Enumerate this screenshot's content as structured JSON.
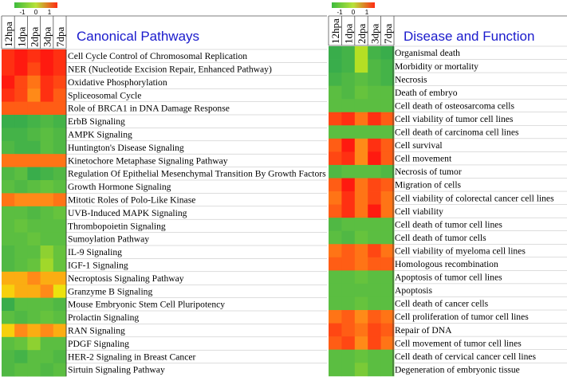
{
  "legend": {
    "ticks": [
      "-1",
      "0",
      "1"
    ],
    "colors": [
      "#3dbb3d",
      "#b8e23a",
      "#ff2a12"
    ]
  },
  "colorscale": {
    "stops": [
      {
        "v": -1.0,
        "color": "#2ea84f"
      },
      {
        "v": -0.5,
        "color": "#66c33d"
      },
      {
        "v": 0.0,
        "color": "#c9e61e"
      },
      {
        "v": 0.25,
        "color": "#f5e10a"
      },
      {
        "v": 0.5,
        "color": "#ff8a18"
      },
      {
        "v": 1.0,
        "color": "#ff1a10"
      }
    ]
  },
  "chart_data": [
    {
      "type": "heatmap",
      "title": "Canonical Pathways",
      "columns": [
        "12hpa",
        "1dpa",
        "2dpa",
        "3dpa",
        "7dpa"
      ],
      "rows": [
        {
          "label": "Cell Cycle Control of Chromosomal Replication",
          "values": [
            0.9,
            1.0,
            0.9,
            1.0,
            0.9
          ]
        },
        {
          "label": "NER (Nucleotide Excision Repair, Enhanced Pathway)",
          "values": [
            0.9,
            1.0,
            0.8,
            1.0,
            0.9
          ]
        },
        {
          "label": "Oxidative Phosphorylation",
          "values": [
            1.0,
            0.8,
            0.6,
            0.9,
            0.8
          ]
        },
        {
          "label": "Spliceosomal Cycle",
          "values": [
            0.9,
            0.8,
            0.5,
            0.9,
            0.7
          ]
        },
        {
          "label": "Role of BRCA1 in DNA Damage Response",
          "values": [
            0.7,
            0.7,
            0.7,
            0.7,
            0.7
          ]
        },
        {
          "label": "ErbB Signaling",
          "values": [
            -0.9,
            -0.9,
            -0.8,
            -0.7,
            -0.8
          ]
        },
        {
          "label": "AMPK Signaling",
          "values": [
            -0.8,
            -0.8,
            -0.7,
            -0.6,
            -0.7
          ]
        },
        {
          "label": "Huntington's Disease Signaling",
          "values": [
            -0.7,
            -0.8,
            -0.8,
            -0.6,
            -0.7
          ]
        },
        {
          "label": "Kinetochore Metaphase Signaling Pathway",
          "values": [
            0.6,
            0.6,
            0.6,
            0.6,
            0.6
          ]
        },
        {
          "label": "Regulation Of Epithelial Mesenchymal Transition By Growth Factors",
          "values": [
            -0.7,
            -0.6,
            -0.9,
            -0.8,
            -0.7
          ]
        },
        {
          "label": "Growth Hormone Signaling",
          "values": [
            -0.6,
            -0.7,
            -0.6,
            -0.5,
            -0.6
          ]
        },
        {
          "label": "Mitotic Roles of Polo-Like Kinase",
          "values": [
            0.6,
            0.5,
            0.5,
            0.5,
            0.6
          ]
        },
        {
          "label": "UVB-Induced MAPK Signaling",
          "values": [
            -0.6,
            -0.6,
            -0.7,
            -0.6,
            -0.5
          ]
        },
        {
          "label": "Thrombopoietin Signaling",
          "values": [
            -0.6,
            -0.5,
            -0.6,
            -0.6,
            -0.6
          ]
        },
        {
          "label": "Sumoylation Pathway",
          "values": [
            -0.6,
            -0.6,
            -0.5,
            -0.6,
            -0.6
          ]
        },
        {
          "label": "IL-9 Signaling",
          "values": [
            -0.7,
            -0.6,
            -0.6,
            -0.3,
            -0.5
          ]
        },
        {
          "label": "IGF-1 Signaling",
          "values": [
            -0.7,
            -0.6,
            -0.5,
            -0.2,
            -0.5
          ]
        },
        {
          "label": "Necroptosis Signaling Pathway",
          "values": [
            0.4,
            0.4,
            0.5,
            0.4,
            0.4
          ]
        },
        {
          "label": "Granzyme B Signaling",
          "values": [
            0.3,
            0.4,
            0.4,
            0.5,
            0.2
          ]
        },
        {
          "label": "Mouse Embryonic Stem Cell Pluripotency",
          "values": [
            -0.9,
            -0.6,
            -0.6,
            -0.6,
            -0.7
          ]
        },
        {
          "label": "Prolactin Signaling",
          "values": [
            -0.6,
            -0.7,
            -0.6,
            -0.5,
            -0.6
          ]
        },
        {
          "label": "RAN Signaling",
          "values": [
            0.3,
            0.5,
            0.4,
            0.5,
            0.4
          ]
        },
        {
          "label": "PDGF Signaling",
          "values": [
            -0.6,
            -0.5,
            -0.3,
            -0.6,
            -0.6
          ]
        },
        {
          "label": "HER-2 Signaling in Breast Cancer",
          "values": [
            -0.7,
            -0.8,
            -0.6,
            -0.6,
            -0.7
          ]
        },
        {
          "label": "Sirtuin Signaling Pathway",
          "values": [
            -0.7,
            -0.6,
            -0.6,
            -0.7,
            -0.6
          ]
        }
      ]
    },
    {
      "type": "heatmap",
      "title": "Disease and Function",
      "columns": [
        "12hpa",
        "1dpa",
        "2dpa",
        "3dpa",
        "7dpa"
      ],
      "rows": [
        {
          "label": "Organismal death",
          "values": [
            -0.9,
            -0.8,
            -0.1,
            -0.8,
            -0.9
          ]
        },
        {
          "label": "Morbidity or mortality",
          "values": [
            -0.9,
            -0.8,
            -0.1,
            -0.7,
            -0.8
          ]
        },
        {
          "label": "Necrosis",
          "values": [
            -0.8,
            -0.7,
            -0.6,
            -0.7,
            -0.8
          ]
        },
        {
          "label": "Death of embryo",
          "values": [
            -0.6,
            -0.7,
            -0.5,
            -0.6,
            -0.6
          ]
        },
        {
          "label": "Cell death of osteosarcoma cells",
          "values": [
            -0.6,
            -0.6,
            -0.6,
            -0.6,
            -0.6
          ]
        },
        {
          "label": "Cell viability of tumor cell lines",
          "values": [
            0.8,
            0.9,
            0.6,
            0.9,
            0.7
          ]
        },
        {
          "label": "Cell death of carcinoma cell lines",
          "values": [
            -0.6,
            -0.6,
            -0.6,
            -0.6,
            -0.6
          ]
        },
        {
          "label": "Cell survival",
          "values": [
            0.7,
            1.0,
            0.5,
            0.9,
            0.7
          ]
        },
        {
          "label": "Cell movement",
          "values": [
            0.8,
            0.9,
            0.5,
            1.0,
            0.7
          ]
        },
        {
          "label": "Necrosis of tumor",
          "values": [
            -0.7,
            -0.6,
            -0.6,
            -0.6,
            -0.7
          ]
        },
        {
          "label": "Migration of cells",
          "values": [
            0.7,
            1.0,
            0.6,
            0.8,
            0.7
          ]
        },
        {
          "label": "Cell viability of colorectal cancer cell lines",
          "values": [
            0.6,
            0.9,
            0.6,
            0.8,
            0.6
          ]
        },
        {
          "label": "Cell viability",
          "values": [
            0.7,
            0.9,
            0.6,
            1.0,
            0.6
          ]
        },
        {
          "label": "Cell death of tumor cell lines",
          "values": [
            -0.7,
            -0.6,
            -0.6,
            -0.6,
            -0.6
          ]
        },
        {
          "label": "Cell death of tumor cells",
          "values": [
            -0.6,
            -0.7,
            -0.5,
            -0.6,
            -0.6
          ]
        },
        {
          "label": "Cell viability of myeloma cell lines",
          "values": [
            0.6,
            0.7,
            0.6,
            0.8,
            0.6
          ]
        },
        {
          "label": "Homologous recombination",
          "values": [
            0.7,
            0.7,
            0.6,
            0.7,
            0.7
          ]
        },
        {
          "label": "Apoptosis of tumor cell lines",
          "values": [
            -0.6,
            -0.6,
            -0.5,
            -0.6,
            -0.6
          ]
        },
        {
          "label": "Apoptosis",
          "values": [
            -0.6,
            -0.6,
            -0.6,
            -0.6,
            -0.6
          ]
        },
        {
          "label": "Cell death of cancer cells",
          "values": [
            -0.6,
            -0.6,
            -0.5,
            -0.6,
            -0.6
          ]
        },
        {
          "label": "Cell proliferation of tumor cell lines",
          "values": [
            0.6,
            0.7,
            0.5,
            0.7,
            0.6
          ]
        },
        {
          "label": "Repair of DNA",
          "values": [
            0.8,
            0.7,
            0.6,
            0.8,
            0.7
          ]
        },
        {
          "label": "Cell movement of tumor cell lines",
          "values": [
            0.7,
            0.8,
            0.5,
            0.8,
            0.6
          ]
        },
        {
          "label": "Cell death of cervical cancer cell lines",
          "values": [
            -0.6,
            -0.6,
            -0.5,
            -0.6,
            -0.6
          ]
        },
        {
          "label": "Degeneration of embryonic tissue",
          "values": [
            -0.6,
            -0.6,
            -0.4,
            -0.6,
            -0.6
          ]
        }
      ]
    }
  ]
}
